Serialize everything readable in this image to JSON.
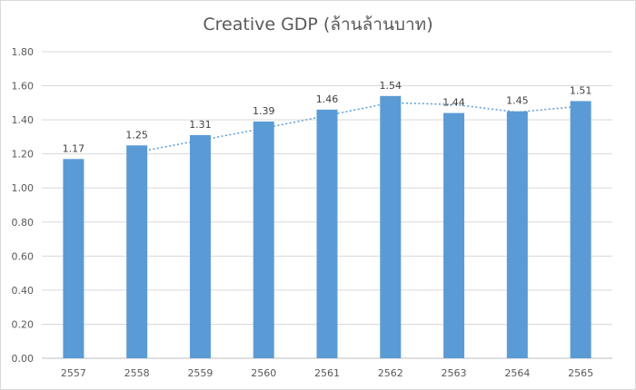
{
  "chart_data": {
    "type": "bar",
    "title": "Creative GDP (ล้านล้านบาท)",
    "categories": [
      "2557",
      "2558",
      "2559",
      "2560",
      "2561",
      "2562",
      "2563",
      "2564",
      "2565"
    ],
    "series": [
      {
        "values": [
          1.17,
          1.25,
          1.31,
          1.39,
          1.46,
          1.54,
          1.44,
          1.45,
          1.51
        ]
      }
    ],
    "trendline": {
      "type": "moving-average",
      "period": 2,
      "style": "dotted"
    },
    "ylim": [
      0,
      1.8
    ],
    "yticks": [
      "0.00",
      "0.20",
      "0.40",
      "0.60",
      "0.80",
      "1.00",
      "1.20",
      "1.40",
      "1.60",
      "1.80"
    ],
    "xlabel": "",
    "ylabel": "",
    "grid": true,
    "legend": "none",
    "colors": {
      "bar": "#5b9bd5",
      "trend": "#5b9bd5",
      "grid": "#d9d9d9",
      "text": "#595959"
    }
  }
}
